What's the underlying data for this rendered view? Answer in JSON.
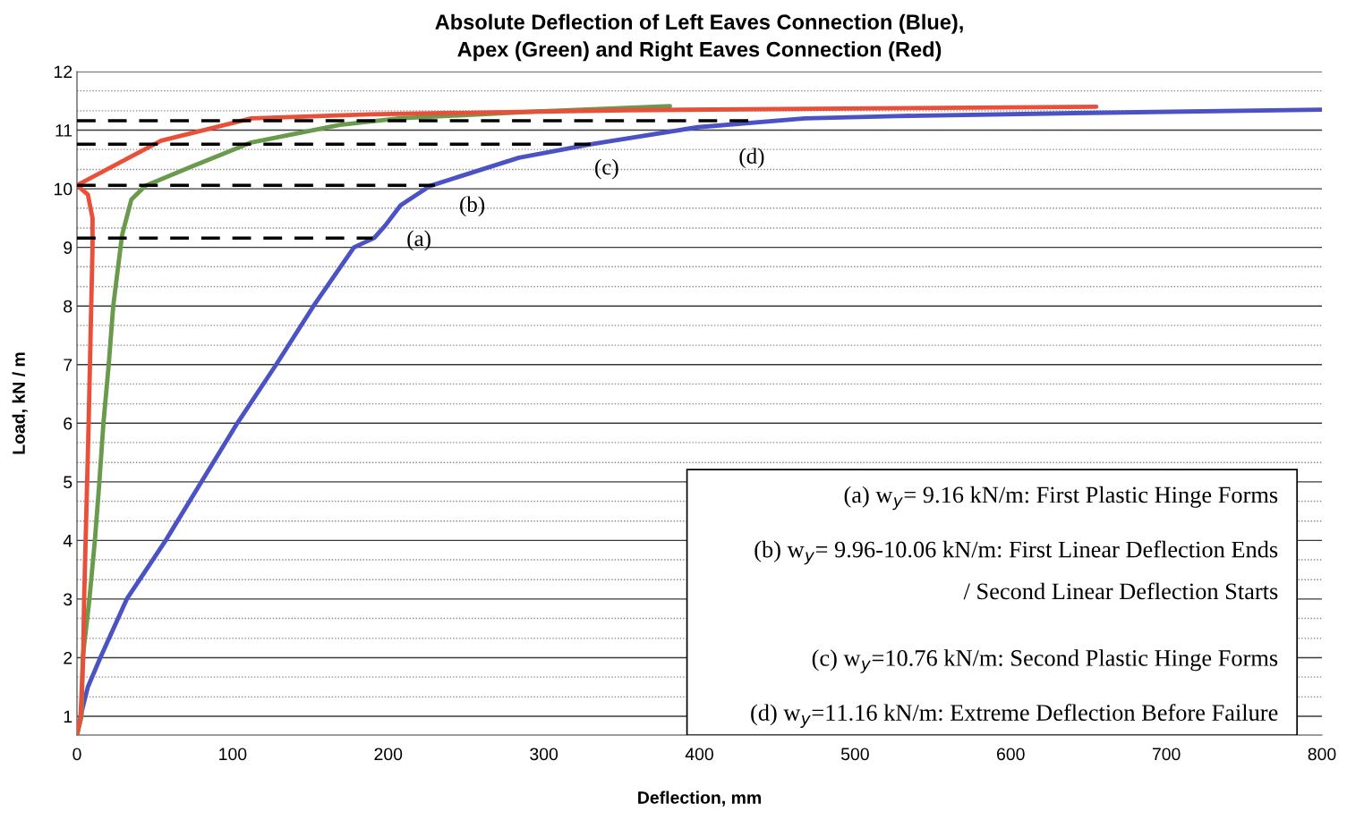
{
  "chart_data": {
    "type": "line",
    "title": "Absolute Deflection of Left Eaves Connection (Blue),\nApex (Green) and Right Eaves Connection (Red)",
    "xlabel": "Deflection, mm",
    "ylabel": "Load, kN / m",
    "xlim": [
      0,
      800
    ],
    "ylim": [
      0.68,
      12
    ],
    "xticks": [
      0,
      100,
      200,
      300,
      400,
      500,
      600,
      700,
      800
    ],
    "yticks": [
      1,
      {
        "value": 1.33,
        "label": null
      },
      {
        "value": 1.67,
        "label": null
      },
      2,
      {
        "value": 2.33,
        "label": null
      },
      {
        "value": 2.67,
        "label": null
      },
      3,
      {
        "value": 3.33,
        "label": null
      },
      {
        "value": 3.67,
        "label": null
      },
      4,
      {
        "value": 4.33,
        "label": null
      },
      {
        "value": 4.67,
        "label": null
      },
      5,
      {
        "value": 5.33,
        "label": null
      },
      {
        "value": 5.67,
        "label": null
      },
      6,
      {
        "value": 6.33,
        "label": null
      },
      {
        "value": 6.67,
        "label": null
      },
      7,
      {
        "value": 7.33,
        "label": null
      },
      {
        "value": 7.67,
        "label": null
      },
      8,
      {
        "value": 8.33,
        "label": null
      },
      {
        "value": 8.67,
        "label": null
      },
      9,
      {
        "value": 9.33,
        "label": null
      },
      {
        "value": 9.67,
        "label": null
      },
      10,
      {
        "value": 10.33,
        "label": null
      },
      {
        "value": 10.67,
        "label": null
      },
      11,
      {
        "value": 11.33,
        "label": null
      },
      {
        "value": 11.67,
        "label": null
      },
      12
    ],
    "grid": "y",
    "legend": false,
    "marker": "none",
    "series": [
      {
        "color": "#4a52c4",
        "x": [
          0,
          2.3,
          7,
          15,
          32,
          57,
          80,
          103,
          128,
          152,
          178,
          191,
          198,
          208,
          227,
          284,
          330,
          399,
          468,
          526,
          641,
          800
        ],
        "values": [
          0.68,
          1,
          1.5,
          2,
          3,
          4,
          5,
          6,
          7,
          8,
          9,
          9.16,
          9.37,
          9.72,
          10.05,
          10.53,
          10.76,
          11.05,
          11.2,
          11.24,
          11.29,
          11.35
        ]
      },
      {
        "color": "#6a9a4c",
        "x": [
          0,
          3,
          3.7,
          8,
          11.5,
          14.4,
          17,
          20.4,
          23.3,
          28,
          29,
          35,
          44,
          73,
          112,
          169,
          207,
          296,
          381
        ],
        "values": [
          0.68,
          1,
          2,
          3,
          4,
          5,
          6,
          7,
          8,
          9,
          9.21,
          9.82,
          10.05,
          10.37,
          10.79,
          11.09,
          11.2,
          11.32,
          11.41
        ]
      },
      {
        "color": "#e8503a",
        "x": [
          0,
          2.3,
          4,
          4.6,
          7.5,
          10,
          10,
          7,
          0,
          54,
          112,
          188,
          353,
          655
        ],
        "values": [
          0.68,
          1,
          2,
          3,
          6,
          9,
          9.5,
          9.9,
          10.06,
          10.82,
          11.2,
          11.27,
          11.34,
          11.4
        ]
      },
      {
        "color": "#000000",
        "line_style": "dashed",
        "x": [
          0,
          190
        ],
        "values": [
          9.16,
          9.16
        ]
      },
      {
        "color": "#000000",
        "line_style": "dashed",
        "x": [
          0,
          230
        ],
        "values": [
          10.06,
          10.06
        ]
      },
      {
        "color": "#000000",
        "line_style": "dashed",
        "x": [
          0,
          330
        ],
        "values": [
          10.76,
          10.76
        ]
      },
      {
        "color": "#000000",
        "line_style": "dashed",
        "x": [
          0,
          432
        ],
        "values": [
          11.16,
          11.16
        ]
      }
    ],
    "annotations": [
      {
        "text": "(a)",
        "x": 191,
        "y": 9.16
      },
      {
        "text": "(b)",
        "x": 230,
        "y": 10.06
      },
      {
        "text": "(c)",
        "x": 330,
        "y": 10.76
      },
      {
        "text": "(d)",
        "x": 432,
        "y": 11.16
      },
      "(a) w$_{y}$= 9.16 kN/m: First Plastic Hinge Forms",
      "(b) w$_{y}$= 9.96-10.06 kN/m: First Linear Deflection Ends\n/ Second Linear Deflection Starts",
      "(c) w$_{y}$=10.76 kN/m: Second Plastic Hinge Forms",
      "(d) w$_{y}$=11.16 kN/m: Extreme Deflection Before Failure"
    ]
  }
}
